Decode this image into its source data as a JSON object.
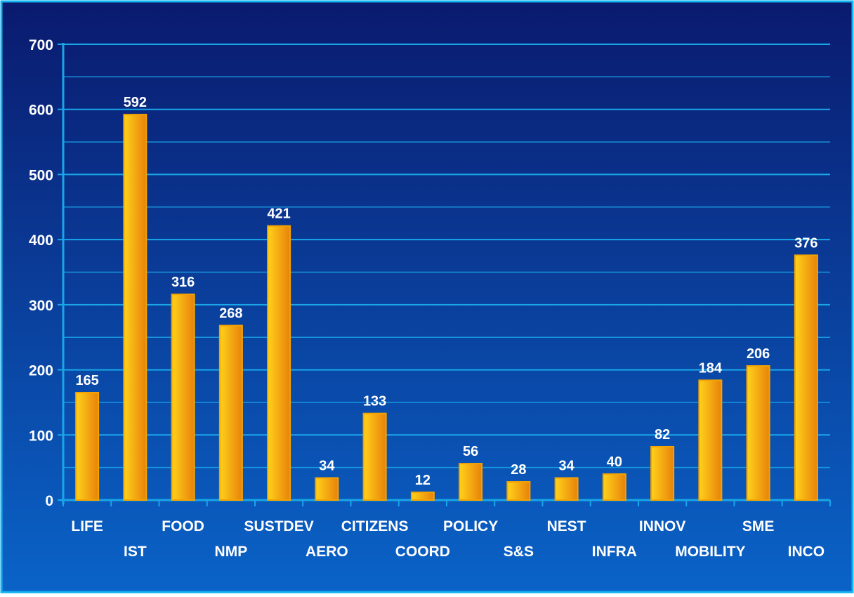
{
  "chart_data": {
    "type": "bar",
    "categories": [
      "LIFE",
      "IST",
      "FOOD",
      "NMP",
      "SUSTDEV",
      "AERO",
      "CITIZENS",
      "COORD",
      "POLICY",
      "S&S",
      "NEST",
      "INFRA",
      "INNOV",
      "MOBILITY",
      "SME",
      "INCO"
    ],
    "values": [
      165,
      592,
      316,
      268,
      421,
      34,
      133,
      12,
      56,
      28,
      34,
      40,
      82,
      184,
      206,
      376
    ],
    "ylim": [
      0,
      700
    ],
    "yticks": [
      0,
      100,
      200,
      300,
      400,
      500,
      600,
      700
    ],
    "grid": true,
    "title": "",
    "xlabel": "",
    "ylabel": "",
    "colors": {
      "background_top": "#0a1a6e",
      "background_bottom": "#0a63c8",
      "border": "#13b5f0",
      "grid": "#19a6e8",
      "axis": "#19a6e8",
      "bar_light": "#ffd21a",
      "bar_dark": "#e8820a",
      "bar_edge": "#f5a300",
      "text": "#ffffff"
    }
  }
}
